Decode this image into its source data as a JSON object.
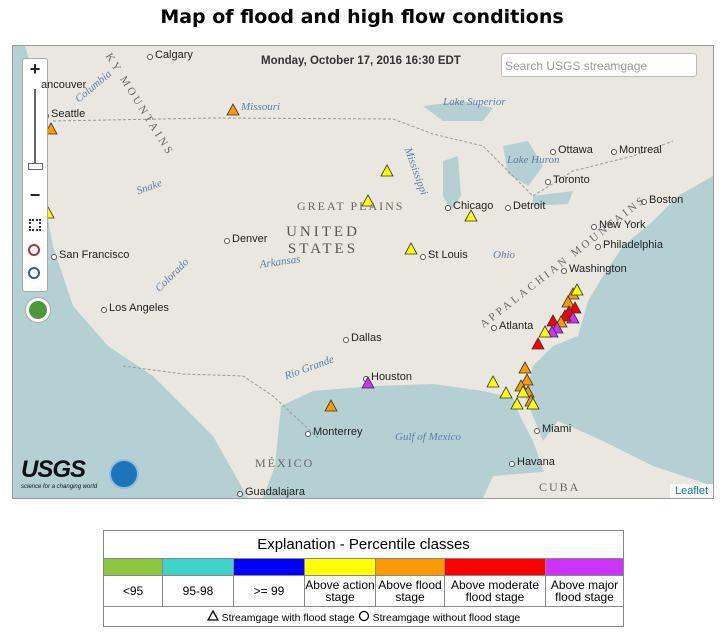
{
  "header": {
    "title": "Map of flood and high flow conditions"
  },
  "map": {
    "timestamp": "Monday, October 17, 2016 16:30 EDT",
    "search_placeholder": "Search USGS streamgage",
    "zoom_in": "+",
    "zoom_out": "−",
    "attribution": "Leaflet",
    "logo": {
      "name": "USGS",
      "tagline": "science for a changing world"
    },
    "labels": [
      "Calgary",
      "ancouver",
      "Seattle",
      "Missouri",
      "Lake Superior",
      "Ottawa",
      "Montreal",
      "Lake Huron",
      "Toronto",
      "Boston",
      "Detroit",
      "Chicago",
      "New York",
      "Philadelphia",
      "Washington",
      "GREAT PLAINS",
      "UNITED STATES",
      "Denver",
      "San Francisco",
      "St Louis",
      "Ohio",
      "Arkansas",
      "Los Angeles",
      "Atlanta",
      "Dallas",
      "Houston",
      "Monterrey",
      "Gulf of Mexico",
      "Miami",
      "Havana",
      "MÉXICO",
      "CUBA",
      "Guadalajara",
      "APPALACHIAN MOUNTAINS",
      "KY MOUNTAINS",
      "Rio Grande",
      "Colorado",
      "Mississippi",
      "Snake",
      "Columbia"
    ]
  },
  "legend": {
    "title": "Explanation - Percentile classes",
    "classes": [
      {
        "label": "<95",
        "color": "#8dc63f"
      },
      {
        "label": "95-98",
        "color": "#3ed3c8"
      },
      {
        "label": ">= 99",
        "color": "#0000ff"
      },
      {
        "label": "Above action stage",
        "color": "#ffff00"
      },
      {
        "label": "Above flood stage",
        "color": "#ff9900"
      },
      {
        "label": "Above moderate flood stage",
        "color": "#ff0000"
      },
      {
        "label": "Above major flood stage",
        "color": "#cc33ff"
      }
    ],
    "symbols": [
      "Streamgage with flood stage",
      "Streamgage without flood stage"
    ]
  }
}
